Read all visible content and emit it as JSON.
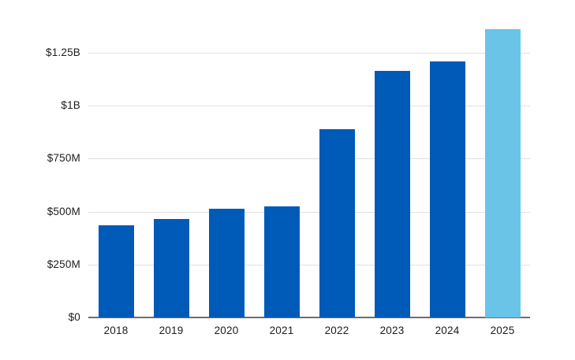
{
  "chart_data": {
    "type": "bar",
    "title": "",
    "xlabel": "",
    "ylabel": "",
    "categories": [
      "2018",
      "2019",
      "2020",
      "2021",
      "2022",
      "2023",
      "2024",
      "2025"
    ],
    "values": [
      435000000,
      465000000,
      515000000,
      525000000,
      890000000,
      1165000000,
      1210000000,
      1360000000
    ],
    "bar_colors": [
      "#005AB8",
      "#005AB8",
      "#005AB8",
      "#005AB8",
      "#005AB8",
      "#005AB8",
      "#005AB8",
      "#69C4E8"
    ],
    "yticks": [
      {
        "value": 0,
        "label": "$0"
      },
      {
        "value": 250000000,
        "label": "$250M"
      },
      {
        "value": 500000000,
        "label": "$500M"
      },
      {
        "value": 750000000,
        "label": "$750M"
      },
      {
        "value": 1000000000,
        "label": "$1B"
      },
      {
        "value": 1250000000,
        "label": "$1.25B"
      }
    ],
    "ylim": [
      0,
      1450000000
    ],
    "grid": true,
    "legend": false,
    "colors": {
      "primary_bar": "#005AB8",
      "highlight_bar": "#69C4E8",
      "gridline": "#e0e0e0",
      "axis_line": "#6e6e6e",
      "label_text": "#1c1c1c"
    }
  }
}
